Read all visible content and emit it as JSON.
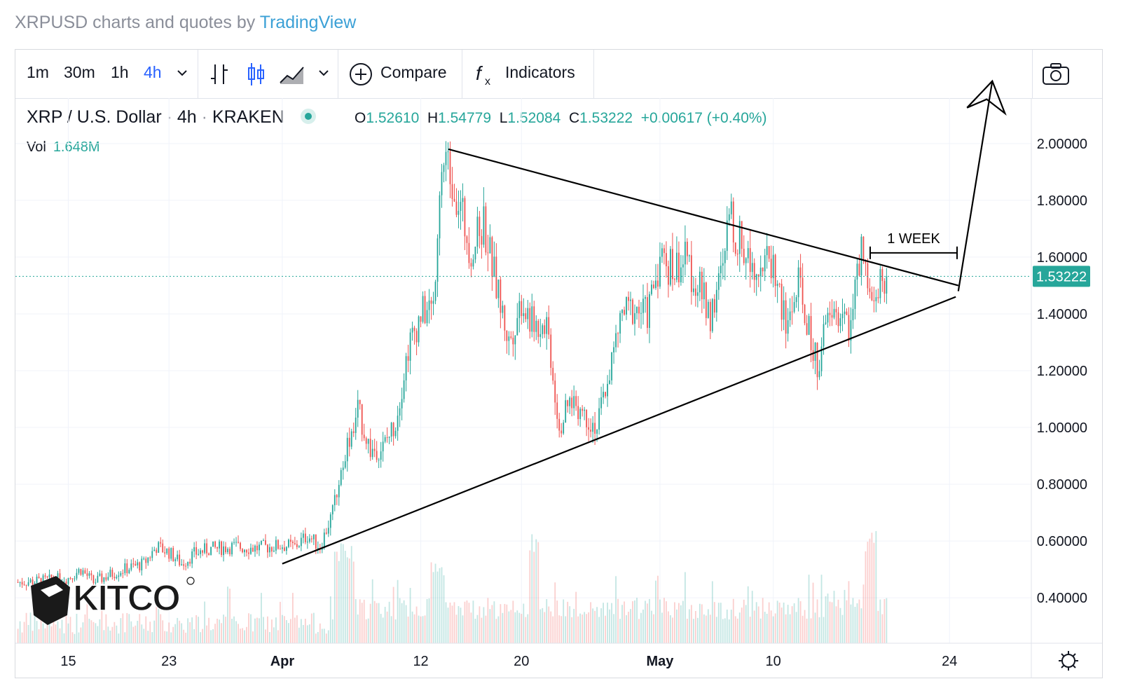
{
  "header": {
    "attribution_prefix": "XRPUSD charts and quotes by",
    "attribution_brand": "TradingView"
  },
  "toolbar": {
    "intervals": [
      "1m",
      "30m",
      "1h",
      "4h"
    ],
    "active_interval": "4h",
    "compare_label": "Compare",
    "indicators_label": "Indicators"
  },
  "legend": {
    "symbol": "XRP / U.S. Dollar",
    "interval": "4h",
    "exchange": "KRAKEN",
    "open_label": "O",
    "open": "1.52610",
    "high_label": "H",
    "high": "1.54779",
    "low_label": "L",
    "low": "1.52084",
    "close_label": "C",
    "close": "1.53222",
    "change": "+0.00617 (+0.40%)",
    "vol_label": "Vol",
    "vol_value": "1.648M"
  },
  "logo": {
    "text": "KITCO"
  },
  "colors": {
    "up": "#26a69a",
    "down": "#ef5350",
    "text": "#131722",
    "price_tag": "#26a69a"
  },
  "chart_data": {
    "type": "candlestick",
    "symbol": "XRPUSD",
    "interval": "4h",
    "y_axis": {
      "ticks": [
        "2.00000",
        "1.80000",
        "1.60000",
        "1.40000",
        "1.20000",
        "1.00000",
        "0.80000",
        "0.60000",
        "0.40000"
      ],
      "tick_values": [
        2.0,
        1.8,
        1.6,
        1.4,
        1.2,
        1.0,
        0.8,
        0.6,
        0.4
      ],
      "range": [
        0.24,
        2.16
      ]
    },
    "x_axis": {
      "ticks": [
        "15",
        "23",
        "Apr",
        "12",
        "20",
        "May",
        "10",
        "24"
      ],
      "tick_days": [
        0,
        8,
        17,
        28,
        36,
        47,
        56,
        70
      ],
      "range_days": [
        -4.2,
        76.5
      ]
    },
    "last_price": 1.53222,
    "last_price_label": "1.53222",
    "price_path": [
      [
        -4,
        0.455
      ],
      [
        -2,
        0.46
      ],
      [
        0,
        0.47
      ],
      [
        1,
        0.5
      ],
      [
        2,
        0.455
      ],
      [
        4,
        0.495
      ],
      [
        6,
        0.52
      ],
      [
        7,
        0.58
      ],
      [
        8,
        0.56
      ],
      [
        9,
        0.52
      ],
      [
        10,
        0.555
      ],
      [
        11,
        0.57
      ],
      [
        13,
        0.58
      ],
      [
        15,
        0.575
      ],
      [
        17,
        0.585
      ],
      [
        18,
        0.58
      ],
      [
        19,
        0.62
      ],
      [
        20,
        0.58
      ],
      [
        21,
        0.7
      ],
      [
        22,
        0.92
      ],
      [
        23,
        1.06
      ],
      [
        24,
        0.92
      ],
      [
        25,
        0.93
      ],
      [
        26,
        1.02
      ],
      [
        27,
        1.28
      ],
      [
        28,
        1.4
      ],
      [
        29,
        1.42
      ],
      [
        29.5,
        1.88
      ],
      [
        30,
        1.95
      ],
      [
        31,
        1.8
      ],
      [
        32,
        1.62
      ],
      [
        33,
        1.72
      ],
      [
        34,
        1.5
      ],
      [
        35,
        1.3
      ],
      [
        36,
        1.45
      ],
      [
        37,
        1.35
      ],
      [
        38,
        1.38
      ],
      [
        39,
        1.0
      ],
      [
        40,
        1.1
      ],
      [
        41,
        1.05
      ],
      [
        42,
        1.0
      ],
      [
        43,
        1.2
      ],
      [
        44,
        1.4
      ],
      [
        45,
        1.42
      ],
      [
        46,
        1.4
      ],
      [
        47,
        1.6
      ],
      [
        48,
        1.56
      ],
      [
        49,
        1.59
      ],
      [
        50,
        1.5
      ],
      [
        51,
        1.4
      ],
      [
        52,
        1.55
      ],
      [
        52.5,
        1.75
      ],
      [
        53,
        1.68
      ],
      [
        54,
        1.6
      ],
      [
        55,
        1.58
      ],
      [
        56,
        1.58
      ],
      [
        57,
        1.35
      ],
      [
        58,
        1.5
      ],
      [
        59,
        1.3
      ],
      [
        59.5,
        1.22
      ],
      [
        60,
        1.32
      ],
      [
        61,
        1.4
      ],
      [
        62,
        1.36
      ],
      [
        63,
        1.6
      ],
      [
        64,
        1.4
      ],
      [
        64.5,
        1.52
      ],
      [
        65,
        1.53222
      ]
    ],
    "volume_spikes": [
      [
        21.5,
        0.6
      ],
      [
        22.2,
        0.55
      ],
      [
        29.3,
        0.45
      ],
      [
        37,
        0.6
      ],
      [
        60.5,
        0.3
      ],
      [
        63.7,
        0.62
      ]
    ],
    "annotations": {
      "resistance_line": [
        [
          30.2,
          1.98
        ],
        [
          70.7,
          1.5
        ]
      ],
      "support_line": [
        [
          17,
          0.52
        ],
        [
          70.5,
          1.46
        ]
      ],
      "breakout_arrow": [
        [
          70.7,
          1.48
        ],
        [
          73.4,
          2.22
        ]
      ],
      "week_marker": {
        "label": "1 WEEK",
        "from": 63.7,
        "to": 70.6,
        "y": 1.615
      }
    }
  }
}
